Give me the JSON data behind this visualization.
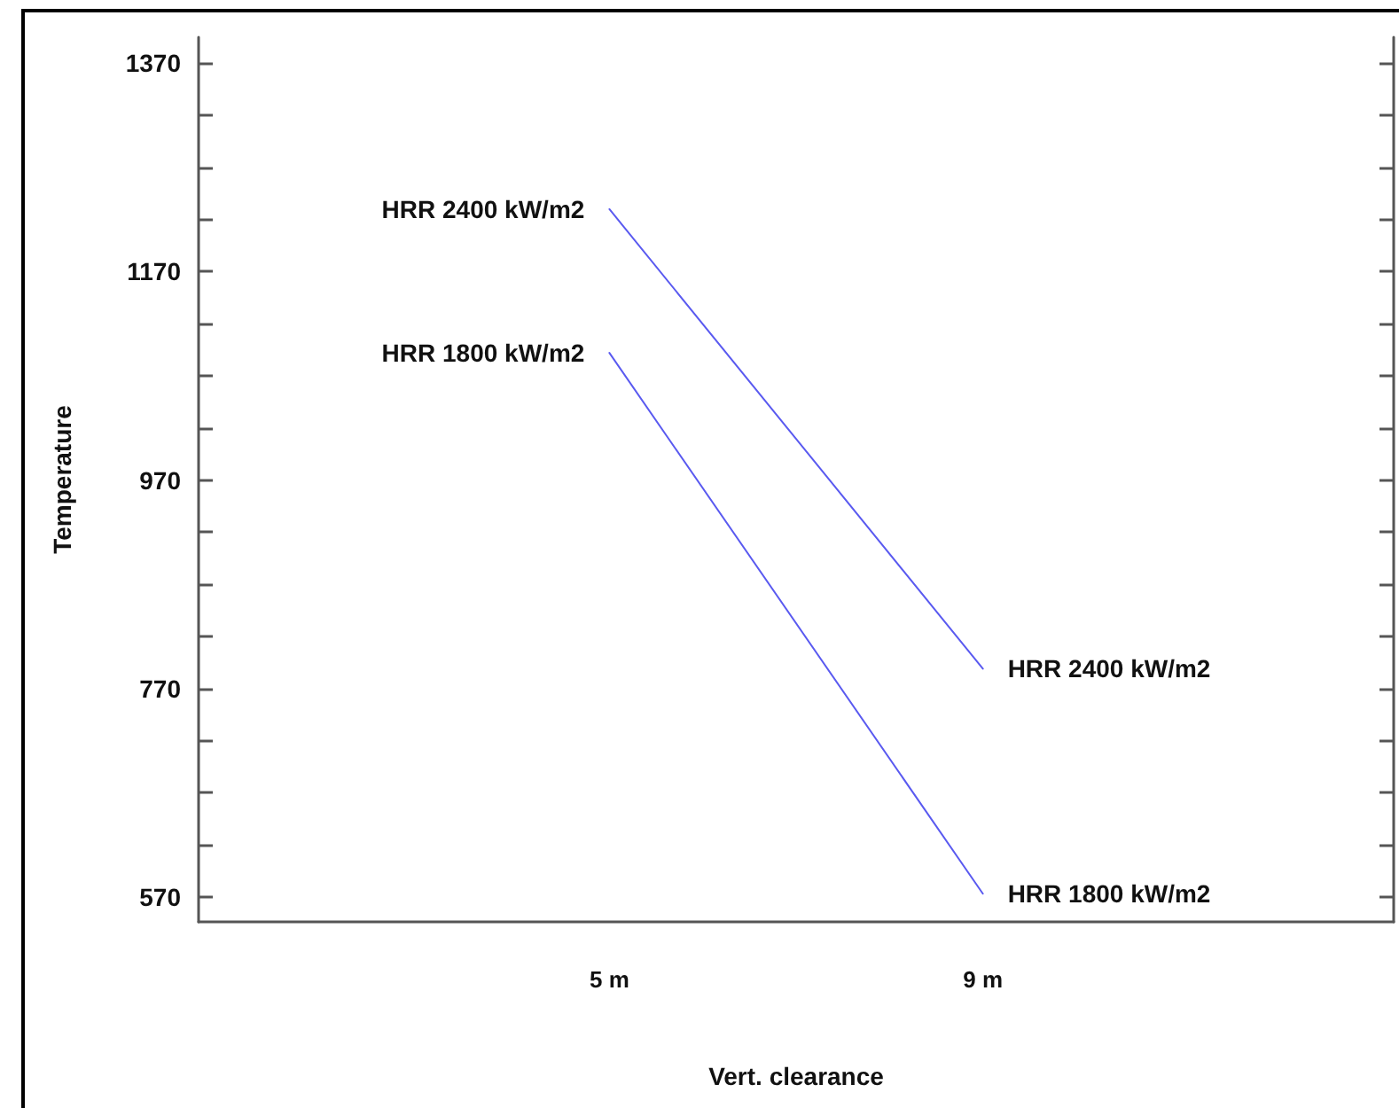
{
  "chart_data": {
    "type": "line",
    "xlabel": "Vert. clearance",
    "ylabel": "Temperature",
    "categories": [
      "5 m",
      "9 m"
    ],
    "series": [
      {
        "name": "HRR 2400 kW/m2",
        "color": "#5a5af0",
        "values": [
          1230,
          789
        ]
      },
      {
        "name": "HRR 1800 kW/m2",
        "color": "#5a5af0",
        "values": [
          1092,
          573
        ]
      }
    ],
    "ylim": [
      546,
      1395
    ],
    "yticks": [
      570,
      {
        "value": 620,
        "label": null
      },
      {
        "value": 670,
        "label": null
      },
      {
        "value": 720,
        "label": null
      },
      770,
      {
        "value": 820,
        "label": null
      },
      {
        "value": 870,
        "label": null
      },
      {
        "value": 920,
        "label": null
      },
      970,
      {
        "value": 1020,
        "label": null
      },
      {
        "value": 1070,
        "label": null
      },
      {
        "value": 1120,
        "label": null
      },
      1170,
      {
        "value": 1220,
        "label": null
      },
      {
        "value": 1270,
        "label": null
      },
      {
        "value": 1320,
        "label": null
      },
      1370
    ],
    "grid": false,
    "legend": false,
    "marker": "none",
    "line_style": "solid"
  }
}
